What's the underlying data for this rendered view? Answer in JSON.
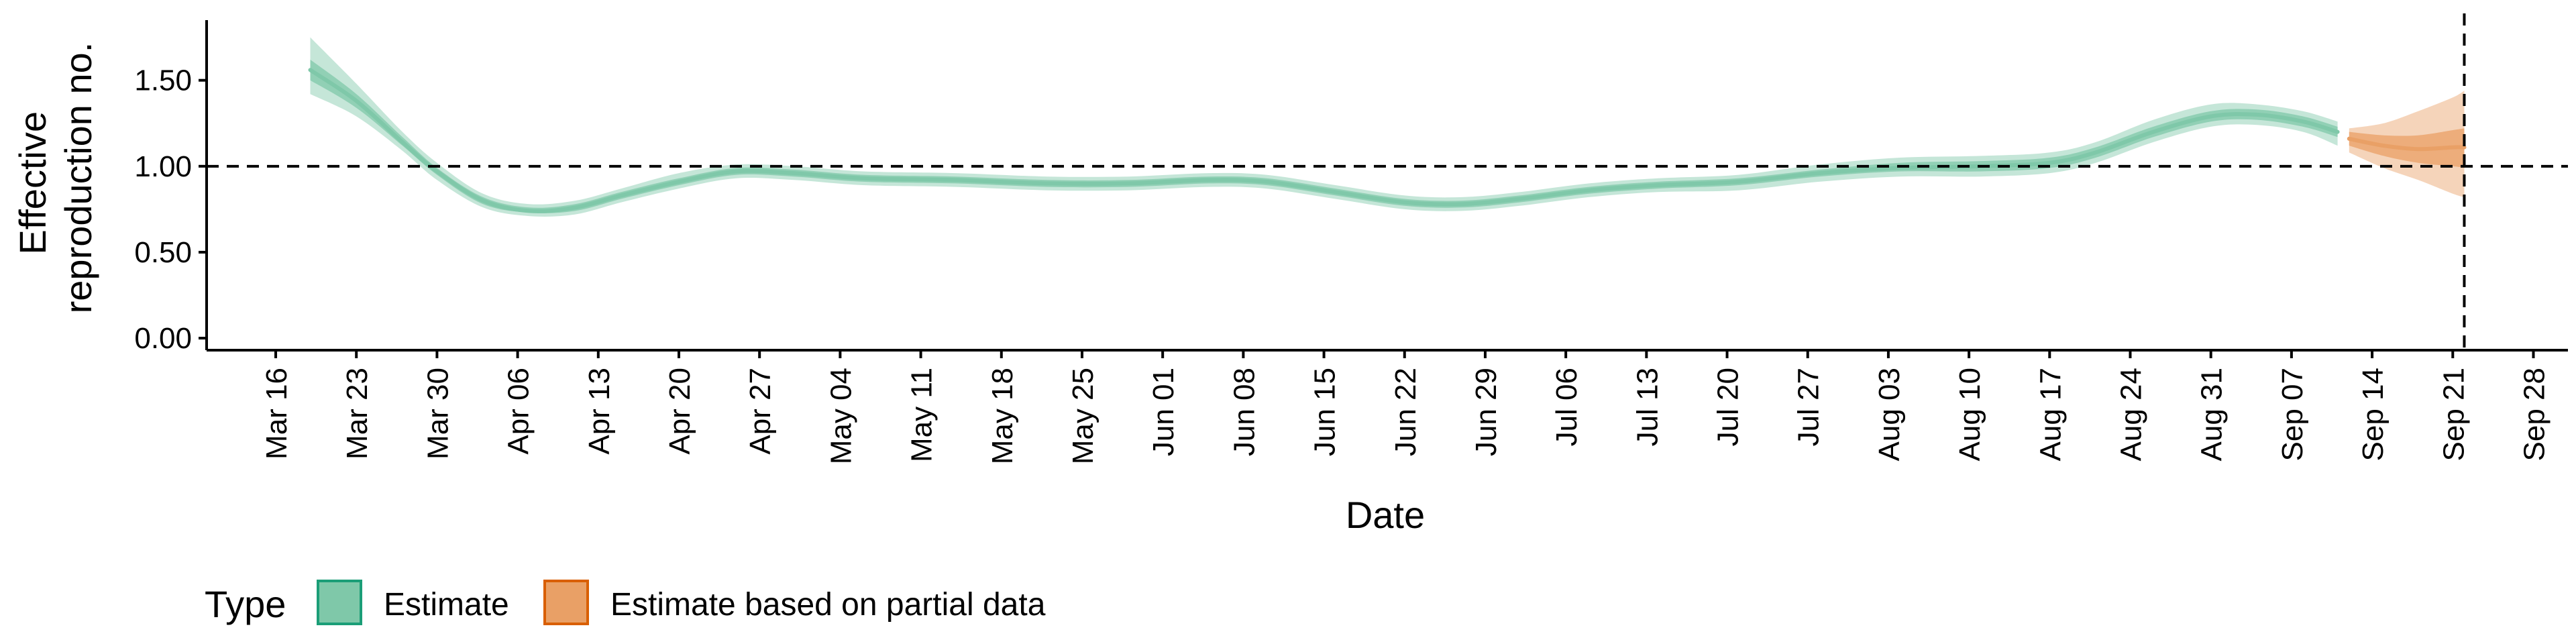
{
  "chart_data": {
    "type": "line",
    "xlabel": "Date",
    "ylabel": [
      "Effective",
      "reproduction no."
    ],
    "x_range": [
      "2020-03-10",
      "2020-10-01"
    ],
    "ylim": [
      -0.07,
      1.85
    ],
    "y_ticks": [
      0.0,
      0.5,
      1.0,
      1.5
    ],
    "y_tick_labels": [
      "0.00",
      "0.50",
      "1.00",
      "1.50"
    ],
    "x_ticks": [
      "2020-03-16",
      "2020-03-23",
      "2020-03-30",
      "2020-04-06",
      "2020-04-13",
      "2020-04-20",
      "2020-04-27",
      "2020-05-04",
      "2020-05-11",
      "2020-05-18",
      "2020-05-25",
      "2020-06-01",
      "2020-06-08",
      "2020-06-15",
      "2020-06-22",
      "2020-06-29",
      "2020-07-06",
      "2020-07-13",
      "2020-07-20",
      "2020-07-27",
      "2020-08-03",
      "2020-08-10",
      "2020-08-17",
      "2020-08-24",
      "2020-08-31",
      "2020-09-07",
      "2020-09-14",
      "2020-09-21",
      "2020-09-28"
    ],
    "x_tick_labels": [
      "Mar 16",
      "Mar 23",
      "Mar 30",
      "Apr 06",
      "Apr 13",
      "Apr 20",
      "Apr 27",
      "May 04",
      "May 11",
      "May 18",
      "May 25",
      "Jun 01",
      "Jun 08",
      "Jun 15",
      "Jun 22",
      "Jun 29",
      "Jul 06",
      "Jul 13",
      "Jul 20",
      "Jul 27",
      "Aug 03",
      "Aug 10",
      "Aug 17",
      "Aug 24",
      "Aug 31",
      "Sep 07",
      "Sep 14",
      "Sep 21",
      "Sep 28"
    ],
    "reference_lines": {
      "horizontal_y": 1.0,
      "vertical_x": "2020-09-22"
    },
    "grid": false,
    "legend": {
      "title": "Type",
      "position": "bottom"
    },
    "series": [
      {
        "name": "Estimate",
        "color": "#1b9e77",
        "fill": "#7fc8a9",
        "points": [
          {
            "x": "2020-03-19",
            "median": 1.56,
            "lo50": 1.5,
            "hi50": 1.62,
            "lo90": 1.42,
            "hi90": 1.75
          },
          {
            "x": "2020-03-23",
            "median": 1.38,
            "lo50": 1.34,
            "hi50": 1.42,
            "lo90": 1.29,
            "hi90": 1.48
          },
          {
            "x": "2020-03-27",
            "median": 1.14,
            "lo50": 1.12,
            "hi50": 1.17,
            "lo90": 1.09,
            "hi90": 1.2
          },
          {
            "x": "2020-03-30",
            "median": 0.97,
            "lo50": 0.95,
            "hi50": 0.99,
            "lo90": 0.92,
            "hi90": 1.02
          },
          {
            "x": "2020-04-03",
            "median": 0.8,
            "lo50": 0.78,
            "hi50": 0.82,
            "lo90": 0.76,
            "hi90": 0.84
          },
          {
            "x": "2020-04-07",
            "median": 0.74,
            "lo50": 0.73,
            "hi50": 0.76,
            "lo90": 0.71,
            "hi90": 0.78
          },
          {
            "x": "2020-04-11",
            "median": 0.76,
            "lo50": 0.74,
            "hi50": 0.78,
            "lo90": 0.72,
            "hi90": 0.8
          },
          {
            "x": "2020-04-15",
            "median": 0.83,
            "lo50": 0.81,
            "hi50": 0.85,
            "lo90": 0.79,
            "hi90": 0.87
          },
          {
            "x": "2020-04-20",
            "median": 0.91,
            "lo50": 0.89,
            "hi50": 0.93,
            "lo90": 0.87,
            "hi90": 0.96
          },
          {
            "x": "2020-04-25",
            "median": 0.97,
            "lo50": 0.95,
            "hi50": 0.99,
            "lo90": 0.93,
            "hi90": 1.01
          },
          {
            "x": "2020-04-30",
            "median": 0.96,
            "lo50": 0.94,
            "hi50": 0.98,
            "lo90": 0.92,
            "hi90": 1.0
          },
          {
            "x": "2020-05-06",
            "median": 0.93,
            "lo50": 0.91,
            "hi50": 0.95,
            "lo90": 0.89,
            "hi90": 0.97
          },
          {
            "x": "2020-05-14",
            "median": 0.92,
            "lo50": 0.9,
            "hi50": 0.94,
            "lo90": 0.88,
            "hi90": 0.96
          },
          {
            "x": "2020-05-22",
            "median": 0.9,
            "lo50": 0.88,
            "hi50": 0.92,
            "lo90": 0.86,
            "hi90": 0.94
          },
          {
            "x": "2020-05-29",
            "median": 0.9,
            "lo50": 0.88,
            "hi50": 0.92,
            "lo90": 0.86,
            "hi90": 0.94
          },
          {
            "x": "2020-06-05",
            "median": 0.92,
            "lo50": 0.9,
            "hi50": 0.94,
            "lo90": 0.88,
            "hi90": 0.96
          },
          {
            "x": "2020-06-10",
            "median": 0.91,
            "lo50": 0.89,
            "hi50": 0.93,
            "lo90": 0.87,
            "hi90": 0.95
          },
          {
            "x": "2020-06-16",
            "median": 0.85,
            "lo50": 0.83,
            "hi50": 0.87,
            "lo90": 0.81,
            "hi90": 0.89
          },
          {
            "x": "2020-06-22",
            "median": 0.79,
            "lo50": 0.77,
            "hi50": 0.81,
            "lo90": 0.75,
            "hi90": 0.83
          },
          {
            "x": "2020-06-27",
            "median": 0.78,
            "lo50": 0.76,
            "hi50": 0.8,
            "lo90": 0.74,
            "hi90": 0.82
          },
          {
            "x": "2020-07-02",
            "median": 0.81,
            "lo50": 0.79,
            "hi50": 0.83,
            "lo90": 0.77,
            "hi90": 0.85
          },
          {
            "x": "2020-07-08",
            "median": 0.86,
            "lo50": 0.84,
            "hi50": 0.88,
            "lo90": 0.82,
            "hi90": 0.9
          },
          {
            "x": "2020-07-14",
            "median": 0.89,
            "lo50": 0.87,
            "hi50": 0.91,
            "lo90": 0.85,
            "hi90": 0.93
          },
          {
            "x": "2020-07-21",
            "median": 0.91,
            "lo50": 0.89,
            "hi50": 0.93,
            "lo90": 0.86,
            "hi90": 0.95
          },
          {
            "x": "2020-07-28",
            "median": 0.96,
            "lo50": 0.94,
            "hi50": 0.98,
            "lo90": 0.91,
            "hi90": 1.01
          },
          {
            "x": "2020-08-04",
            "median": 0.99,
            "lo50": 0.97,
            "hi50": 1.02,
            "lo90": 0.94,
            "hi90": 1.05
          },
          {
            "x": "2020-08-11",
            "median": 1.0,
            "lo50": 0.97,
            "hi50": 1.03,
            "lo90": 0.94,
            "hi90": 1.06
          },
          {
            "x": "2020-08-17",
            "median": 1.02,
            "lo50": 0.99,
            "hi50": 1.05,
            "lo90": 0.96,
            "hi90": 1.08
          },
          {
            "x": "2020-08-21",
            "median": 1.08,
            "lo50": 1.05,
            "hi50": 1.11,
            "lo90": 1.02,
            "hi90": 1.14
          },
          {
            "x": "2020-08-26",
            "median": 1.2,
            "lo50": 1.17,
            "hi50": 1.23,
            "lo90": 1.14,
            "hi90": 1.27
          },
          {
            "x": "2020-08-31",
            "median": 1.29,
            "lo50": 1.26,
            "hi50": 1.32,
            "lo90": 1.23,
            "hi90": 1.36
          },
          {
            "x": "2020-09-04",
            "median": 1.3,
            "lo50": 1.27,
            "hi50": 1.33,
            "lo90": 1.24,
            "hi90": 1.36
          },
          {
            "x": "2020-09-08",
            "median": 1.26,
            "lo50": 1.23,
            "hi50": 1.29,
            "lo90": 1.2,
            "hi90": 1.32
          },
          {
            "x": "2020-09-11",
            "median": 1.2,
            "lo50": 1.17,
            "hi50": 1.23,
            "lo90": 1.12,
            "hi90": 1.26
          }
        ]
      },
      {
        "name": "Estimate based on partial data",
        "color": "#d95f02",
        "fill": "#e9a066",
        "points": [
          {
            "x": "2020-09-12",
            "median": 1.16,
            "lo50": 1.12,
            "hi50": 1.2,
            "lo90": 1.08,
            "hi90": 1.22
          },
          {
            "x": "2020-09-15",
            "median": 1.12,
            "lo50": 1.06,
            "hi50": 1.18,
            "lo90": 0.99,
            "hi90": 1.25
          },
          {
            "x": "2020-09-18",
            "median": 1.1,
            "lo50": 1.02,
            "hi50": 1.18,
            "lo90": 0.92,
            "hi90": 1.32
          },
          {
            "x": "2020-09-21",
            "median": 1.11,
            "lo50": 1.0,
            "hi50": 1.21,
            "lo90": 0.84,
            "hi90": 1.4
          },
          {
            "x": "2020-09-22",
            "median": 1.11,
            "lo50": 0.99,
            "hi50": 1.22,
            "lo90": 0.82,
            "hi90": 1.44
          }
        ]
      }
    ]
  }
}
